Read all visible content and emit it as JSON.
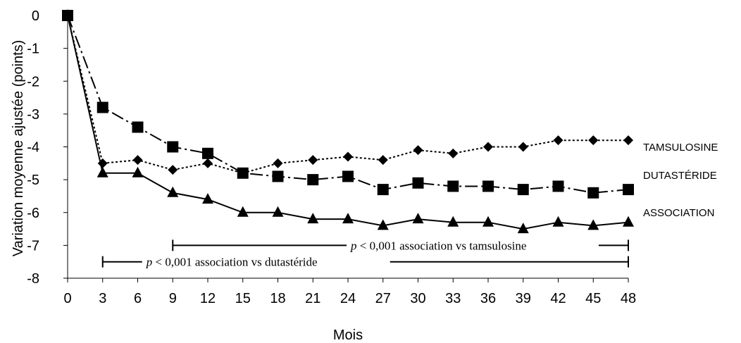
{
  "chart_data": {
    "type": "line",
    "xlabel": "Mois",
    "ylabel": "Variation moyenne ajustée (points)",
    "xlim": [
      0,
      48
    ],
    "ylim": [
      -8,
      0
    ],
    "x_ticks": [
      0,
      3,
      6,
      9,
      12,
      15,
      18,
      21,
      24,
      27,
      30,
      33,
      36,
      39,
      42,
      45,
      48
    ],
    "y_ticks": [
      0,
      -1,
      -2,
      -3,
      -4,
      -5,
      -6,
      -7,
      -8
    ],
    "grid": false,
    "x": [
      0,
      3,
      6,
      9,
      12,
      15,
      18,
      21,
      24,
      27,
      30,
      33,
      36,
      39,
      42,
      45,
      48
    ],
    "series": [
      {
        "name": "TAMSULOSINE",
        "marker": "diamond",
        "line_style": "dotted",
        "values": [
          0,
          -4.5,
          -4.4,
          -4.7,
          -4.5,
          -4.8,
          -4.5,
          -4.4,
          -4.3,
          -4.4,
          -4.1,
          -4.2,
          -4.0,
          -4.0,
          -3.8,
          -3.8,
          -3.8
        ]
      },
      {
        "name": "DUTASTÉRIDE",
        "marker": "square",
        "line_style": "dash-dot",
        "values": [
          0,
          -2.8,
          -3.4,
          -4.0,
          -4.2,
          -4.8,
          -4.9,
          -5.0,
          -4.9,
          -5.3,
          -5.1,
          -5.2,
          -5.2,
          -5.3,
          -5.2,
          -5.4,
          -5.3
        ]
      },
      {
        "name": "ASSOCIATION",
        "marker": "triangle",
        "line_style": "solid",
        "values": [
          0,
          -4.8,
          -4.8,
          -5.4,
          -5.6,
          -6.0,
          -6.0,
          -6.2,
          -6.2,
          -6.4,
          -6.2,
          -6.3,
          -6.3,
          -6.5,
          -6.3,
          -6.4,
          -6.3
        ]
      }
    ],
    "annotations": [
      {
        "p_symbol": "p",
        "text": " < 0,001 association vs tamsulosine",
        "x_start": 9,
        "x_end": 48,
        "y": -7
      },
      {
        "p_symbol": "p",
        "text": " < 0,001 association vs dutastéride",
        "x_start": 3,
        "x_end": 48,
        "y": -7.5
      }
    ]
  }
}
